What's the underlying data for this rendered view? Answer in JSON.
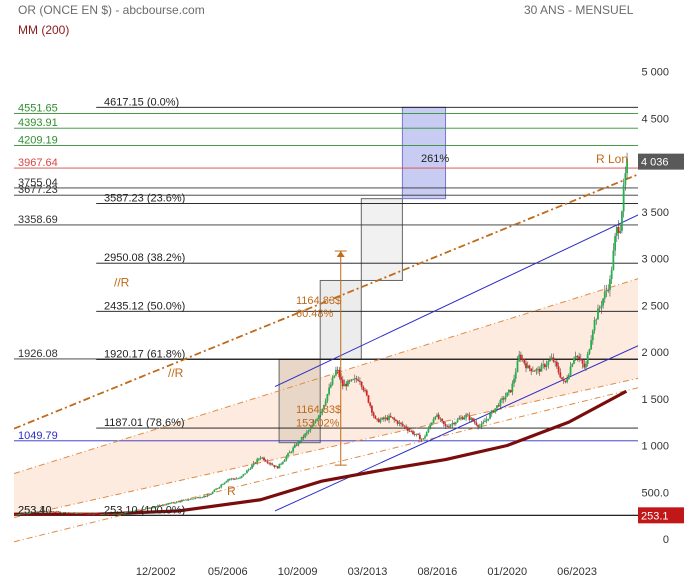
{
  "header": {
    "title": "OR (ONCE EN $) - abcbourse.com",
    "period": "30 ANS - MENSUEL",
    "indicator": "MM (200)"
  },
  "colors": {
    "candle_up": "#22b14c",
    "candle_down": "#e02020",
    "ma": "#7a0c0c",
    "fib": "#555555",
    "channel_blue": "#2c2cc8",
    "channel_orange": "#e08a40",
    "box_blue": "#c9ccf2",
    "box_gray": "#e6e6e6",
    "resist_red": "#d64545",
    "resist_green": "#2f8f2f"
  },
  "chart_data": {
    "type": "candlestick",
    "ylim": [
      0,
      5000
    ],
    "y_ticks": [
      "5 000",
      "4 500",
      "4 000",
      "3 500",
      "3 000",
      "2 500",
      "2 000",
      "1 500",
      "1 000",
      "500.0",
      "0"
    ],
    "x_ticks": [
      "12/2002",
      "05/2006",
      "10/2009",
      "03/2013",
      "08/2016",
      "01/2020",
      "06/2023"
    ],
    "last_price": "4 036",
    "low_marker": "253.1",
    "moving_average": {
      "name": "MM (200)",
      "points": [
        [
          1996.0,
          265
        ],
        [
          2000,
          265
        ],
        [
          2004,
          300
        ],
        [
          2008,
          420
        ],
        [
          2011,
          620
        ],
        [
          2014,
          740
        ],
        [
          2017,
          850
        ],
        [
          2020,
          1000
        ],
        [
          2023,
          1250
        ],
        [
          2025.8,
          1580
        ]
      ]
    },
    "price_path": [
      [
        1996.0,
        260
      ],
      [
        1997.5,
        300
      ],
      [
        1999.0,
        275
      ],
      [
        2001.0,
        265
      ],
      [
        2002.5,
        330
      ],
      [
        2004.0,
        400
      ],
      [
        2005.5,
        470
      ],
      [
        2006.4,
        640
      ],
      [
        2007.0,
        650
      ],
      [
        2008.0,
        880
      ],
      [
        2008.8,
        760
      ],
      [
        2009.7,
        1000
      ],
      [
        2010.5,
        1200
      ],
      [
        2011.0,
        1400
      ],
      [
        2011.7,
        1820
      ],
      [
        2012.0,
        1640
      ],
      [
        2012.8,
        1720
      ],
      [
        2013.3,
        1450
      ],
      [
        2013.6,
        1260
      ],
      [
        2014.3,
        1300
      ],
      [
        2015.0,
        1200
      ],
      [
        2015.9,
        1060
      ],
      [
        2016.5,
        1330
      ],
      [
        2017.0,
        1200
      ],
      [
        2018.0,
        1320
      ],
      [
        2018.7,
        1200
      ],
      [
        2019.5,
        1420
      ],
      [
        2020.2,
        1600
      ],
      [
        2020.6,
        1970
      ],
      [
        2021.0,
        1830
      ],
      [
        2021.5,
        1800
      ],
      [
        2022.2,
        1930
      ],
      [
        2022.8,
        1650
      ],
      [
        2023.3,
        1990
      ],
      [
        2023.8,
        1820
      ],
      [
        2024.2,
        2300
      ],
      [
        2024.8,
        2650
      ],
      [
        2025.0,
        2750
      ],
      [
        2025.3,
        3300
      ],
      [
        2025.5,
        3350
      ],
      [
        2025.7,
        3800
      ],
      [
        2025.85,
        4036
      ]
    ],
    "fibonacci": [
      {
        "label": "4617.15  (0.0%)",
        "value": 4617.15
      },
      {
        "label": "3587.23  (23.6%)",
        "value": 3587.23
      },
      {
        "label": "2950.08  (38.2%)",
        "value": 2950.08
      },
      {
        "label": "2435.12  (50.0%)",
        "value": 2435.12
      },
      {
        "label": "1920.17  (61.8%)",
        "value": 1920.17
      },
      {
        "label": "1187.01  (78.6%)",
        "value": 1187.01
      },
      {
        "label": "253.10  (100.0%)",
        "value": 253.1
      }
    ],
    "levels": [
      {
        "label": "4551.65",
        "value": 4551.65,
        "color": "#2f8f2f"
      },
      {
        "label": "4393.91",
        "value": 4393.91,
        "color": "#2f8f2f"
      },
      {
        "label": "4209.19",
        "value": 4209.19,
        "color": "#2f8f2f"
      },
      {
        "label": "3967.64",
        "value": 3967.64,
        "color": "#d64545"
      },
      {
        "label": "3755.04",
        "value": 3755.04,
        "color": "#333333"
      },
      {
        "label": "3677.23",
        "value": 3677.23,
        "color": "#333333"
      },
      {
        "label": "3358.69",
        "value": 3358.69,
        "color": "#333333"
      },
      {
        "label": "1926.08",
        "value": 1926.08,
        "color": "#333333"
      },
      {
        "label": "1049.79",
        "value": 1049.79,
        "color": "#2c2cc8"
      },
      {
        "label": "253.40",
        "value": 253.4,
        "color": "#333333"
      },
      {
        "label": "253.10",
        "value": 253.1,
        "color": "#333333"
      }
    ],
    "annotations": {
      "pct_261": "261%",
      "move_top_amount": "1164.83$",
      "move_top_pct": "60.48%",
      "move_bottom_amount": "1164.83$",
      "move_bottom_pct": "153.02%",
      "r_label": "R",
      "r_label_2": "//R",
      "r_label_3": "//R",
      "r_lon": "R Lon"
    }
  }
}
